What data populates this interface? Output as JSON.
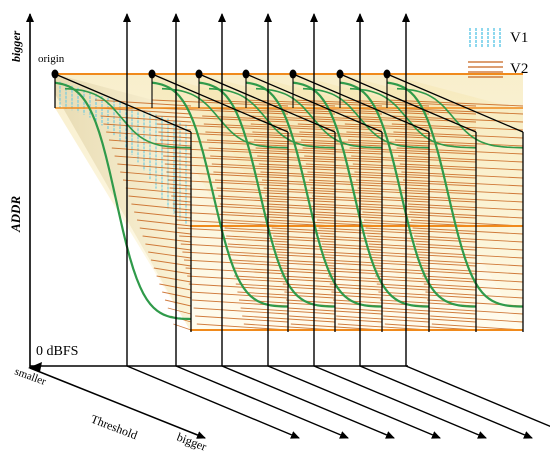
{
  "axis_labels": {
    "addr": "ADDR",
    "bigger_top": "bigger",
    "zero": "0 dBFS",
    "smaller": "smaller",
    "threshold": "Threshold",
    "bigger_bottom": "bigger",
    "origin": "origin"
  },
  "legend": {
    "v1": "V1",
    "v2": "V2"
  },
  "colors": {
    "v1_hatch": "#5ec8e6",
    "v2_hatch": "#c8651e",
    "threshold_line": "#f08a1c",
    "curve": "#2f9a4a",
    "panel_fill_top": "#f3e3a8",
    "panel_fill_bottom": "#fff8dc"
  },
  "icons": [
    "arrow-up-icon",
    "arrow-right-icon",
    "arrow-diagonal-icon",
    "origin-dot-icon"
  ]
}
